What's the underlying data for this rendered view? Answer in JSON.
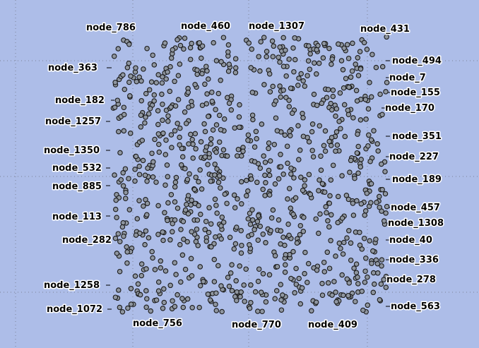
{
  "graph": {
    "background_color": "#adbde8",
    "node_fill": "#8f96a0",
    "node_stroke": "#1a1a1a",
    "grid_color": "#7a8196",
    "labels": {
      "top": [
        "node_786",
        "node_460",
        "node_1307",
        "node_431"
      ],
      "left": [
        "node_363",
        "node_182",
        "node_1257",
        "node_1350",
        "node_532",
        "node_885",
        "node_113",
        "node_282",
        "node_1258",
        "node_1072"
      ],
      "right": [
        "node_494",
        "node_7",
        "node_155",
        "node_170",
        "node_351",
        "node_227",
        "node_189",
        "node_457",
        "node_1308",
        "node_40",
        "node_336",
        "node_278",
        "node_563"
      ],
      "bottom": [
        "node_756",
        "node_770",
        "node_409"
      ]
    }
  }
}
